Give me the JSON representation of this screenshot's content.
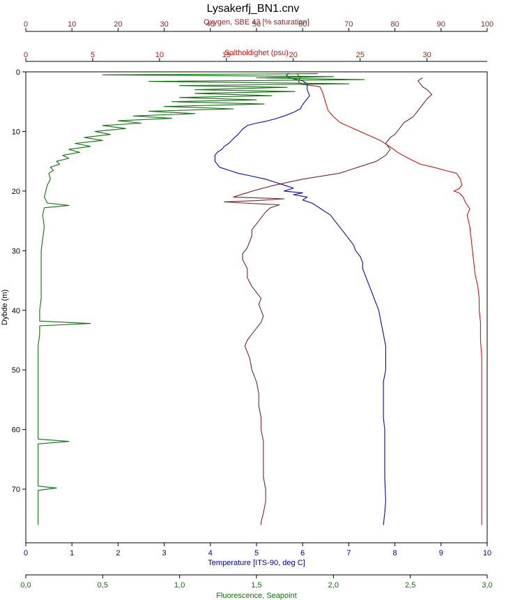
{
  "chart_data": {
    "type": "line",
    "title": "Lysakerfj_BN1.cnv",
    "grid": false,
    "legend": "none",
    "y_axis": {
      "label": "Dybde (m)",
      "range": [
        0,
        79
      ],
      "ticks": [
        0,
        10,
        20,
        30,
        40,
        50,
        60,
        70
      ],
      "inverted": true
    },
    "x_axes": [
      {
        "id": "oxygen",
        "label": "Oxygen, SBE 43 [% saturation]",
        "position": "top-outer",
        "range": [
          0,
          100
        ],
        "ticks": [
          "0",
          "10",
          "20",
          "30",
          "40",
          "50",
          "60",
          "70",
          "80",
          "90",
          "100"
        ],
        "color": "#8b2a2a"
      },
      {
        "id": "salinity",
        "label": "Saltholdighet (psu)",
        "position": "top-inner",
        "range": [
          0,
          34.5
        ],
        "ticks": [
          "0",
          "5",
          "10",
          "15",
          "20",
          "25",
          "30"
        ],
        "color": "#d01010"
      },
      {
        "id": "temperature",
        "label": "Temperature [ITS-90, deg C]",
        "position": "bottom-inner",
        "range": [
          0,
          10
        ],
        "ticks": [
          "0",
          "1",
          "2",
          "3",
          "4",
          "5",
          "6",
          "7",
          "8",
          "9",
          "10"
        ],
        "color": "#0000a0"
      },
      {
        "id": "fluorescence",
        "label": "Fluorescence, Seapoint",
        "position": "bottom-outer",
        "range": [
          0,
          3
        ],
        "ticks": [
          "0,0",
          "0,5",
          "1,0",
          "1,5",
          "2,0",
          "2,5",
          "3,0"
        ],
        "color": "#107010"
      }
    ],
    "series": [
      {
        "axis": "oxygen",
        "color": "#6e2a2a",
        "points": [
          [
            86,
            1
          ],
          [
            85,
            1.5
          ],
          [
            86,
            2.5
          ],
          [
            87,
            3
          ],
          [
            88,
            3.8
          ],
          [
            87,
            4.5
          ],
          [
            86,
            5.5
          ],
          [
            85,
            6.5
          ],
          [
            84,
            7.5
          ],
          [
            82,
            8.5
          ],
          [
            81,
            9.5
          ],
          [
            80,
            10.5
          ],
          [
            79,
            11
          ],
          [
            78,
            12
          ],
          [
            79,
            13
          ],
          [
            78,
            14
          ],
          [
            76,
            15
          ],
          [
            72,
            16
          ],
          [
            68,
            17
          ],
          [
            60,
            18
          ],
          [
            54,
            19
          ],
          [
            50,
            19.8
          ],
          [
            47,
            20.5
          ],
          [
            45,
            21
          ],
          [
            56,
            21.3
          ],
          [
            50,
            21.6
          ],
          [
            43,
            21.8
          ],
          [
            47,
            22
          ],
          [
            55,
            22.3
          ],
          [
            53,
            22.8
          ],
          [
            52,
            23.5
          ],
          [
            51,
            24.5
          ],
          [
            50,
            25.5
          ],
          [
            49,
            26.5
          ],
          [
            49,
            27.5
          ],
          [
            48.5,
            28.5
          ],
          [
            48,
            29.5
          ],
          [
            47,
            30.5
          ],
          [
            47,
            31.5
          ],
          [
            48,
            33
          ],
          [
            48,
            34.5
          ],
          [
            49,
            36
          ],
          [
            50,
            37
          ],
          [
            51,
            38
          ],
          [
            50.5,
            39
          ],
          [
            51,
            40
          ],
          [
            51.5,
            41
          ],
          [
            51,
            42
          ],
          [
            50,
            43
          ],
          [
            49,
            44
          ],
          [
            48,
            45
          ],
          [
            47.5,
            46
          ],
          [
            48,
            47
          ],
          [
            48.5,
            48
          ],
          [
            49,
            50
          ],
          [
            50,
            52
          ],
          [
            50.5,
            54
          ],
          [
            50.5,
            56
          ],
          [
            51,
            58
          ],
          [
            51,
            60
          ],
          [
            51.5,
            62
          ],
          [
            51.5,
            64
          ],
          [
            51.5,
            66
          ],
          [
            51.5,
            68
          ],
          [
            52,
            70
          ],
          [
            52,
            72
          ],
          [
            51.5,
            74
          ],
          [
            51,
            75.5
          ],
          [
            51,
            76
          ]
        ]
      },
      {
        "axis": "salinity",
        "color": "#cc1515",
        "points": [
          [
            20.3,
            0.3
          ],
          [
            20.5,
            1
          ],
          [
            20.4,
            1.6
          ],
          [
            20.6,
            2.1
          ],
          [
            21.5,
            2.3
          ],
          [
            22,
            2.5
          ],
          [
            22.2,
            3.5
          ],
          [
            22.4,
            5
          ],
          [
            22.6,
            6.5
          ],
          [
            23,
            7.5
          ],
          [
            23.5,
            8.5
          ],
          [
            24.5,
            9.5
          ],
          [
            25.5,
            10.5
          ],
          [
            26.5,
            11.5
          ],
          [
            27.2,
            12.5
          ],
          [
            27.8,
            13.5
          ],
          [
            28.6,
            14.5
          ],
          [
            29.5,
            15.5
          ],
          [
            30.5,
            16
          ],
          [
            31.3,
            16.5
          ],
          [
            32.2,
            17
          ],
          [
            32.5,
            18
          ],
          [
            32.6,
            19
          ],
          [
            32.4,
            19.6
          ],
          [
            32,
            20
          ],
          [
            32.4,
            20.3
          ],
          [
            32.7,
            21
          ],
          [
            32.9,
            22
          ],
          [
            33.2,
            23
          ],
          [
            33,
            24
          ],
          [
            33.1,
            25
          ],
          [
            33.2,
            26
          ],
          [
            33.3,
            28
          ],
          [
            33.4,
            30
          ],
          [
            33.5,
            32
          ],
          [
            33.6,
            34
          ],
          [
            33.8,
            36
          ],
          [
            33.9,
            38
          ],
          [
            33.9,
            40
          ],
          [
            34,
            42
          ],
          [
            34,
            45
          ],
          [
            34.1,
            48
          ],
          [
            34.1,
            52
          ],
          [
            34.1,
            56
          ],
          [
            34.1,
            60
          ],
          [
            34.1,
            64
          ],
          [
            34.1,
            68
          ],
          [
            34.1,
            72
          ],
          [
            34.1,
            74
          ],
          [
            34.1,
            76
          ]
        ]
      },
      {
        "axis": "temperature",
        "color": "#0a0aa0",
        "points": [
          [
            5.7,
            0.2
          ],
          [
            5.65,
            0.6
          ],
          [
            5.7,
            1
          ],
          [
            6.0,
            1.5
          ],
          [
            6.1,
            2
          ],
          [
            6.1,
            3
          ],
          [
            6.15,
            4
          ],
          [
            6.05,
            5
          ],
          [
            6.0,
            5.5
          ],
          [
            5.95,
            6.2
          ],
          [
            5.8,
            6.8
          ],
          [
            5.6,
            7.4
          ],
          [
            5.4,
            7.9
          ],
          [
            5.2,
            8.3
          ],
          [
            5.0,
            8.6
          ],
          [
            4.8,
            9
          ],
          [
            4.7,
            9.6
          ],
          [
            4.6,
            10.5
          ],
          [
            4.5,
            11.2
          ],
          [
            4.4,
            12
          ],
          [
            4.3,
            12.5
          ],
          [
            4.25,
            13
          ],
          [
            4.15,
            13.5
          ],
          [
            4.1,
            14
          ],
          [
            4.1,
            15
          ],
          [
            4.2,
            16
          ],
          [
            4.4,
            16.5
          ],
          [
            4.6,
            17
          ],
          [
            4.9,
            17.5
          ],
          [
            5.2,
            18
          ],
          [
            5.4,
            18.5
          ],
          [
            5.6,
            19
          ],
          [
            5.8,
            19.5
          ],
          [
            5.6,
            20
          ],
          [
            6.0,
            20.3
          ],
          [
            5.8,
            20.6
          ],
          [
            6.1,
            21
          ],
          [
            6.0,
            21.5
          ],
          [
            6.2,
            22
          ],
          [
            6.3,
            22.5
          ],
          [
            6.4,
            23
          ],
          [
            6.5,
            23.5
          ],
          [
            6.6,
            24
          ],
          [
            6.7,
            25
          ],
          [
            6.8,
            26
          ],
          [
            6.9,
            27
          ],
          [
            7.0,
            28
          ],
          [
            7.1,
            29
          ],
          [
            7.15,
            30
          ],
          [
            7.25,
            31
          ],
          [
            7.3,
            32
          ],
          [
            7.3,
            33
          ],
          [
            7.35,
            34
          ],
          [
            7.4,
            35
          ],
          [
            7.45,
            36
          ],
          [
            7.5,
            37
          ],
          [
            7.55,
            38
          ],
          [
            7.6,
            39
          ],
          [
            7.65,
            40
          ],
          [
            7.7,
            42
          ],
          [
            7.75,
            44
          ],
          [
            7.8,
            46
          ],
          [
            7.8,
            48
          ],
          [
            7.8,
            50
          ],
          [
            7.75,
            52
          ],
          [
            7.75,
            54
          ],
          [
            7.75,
            56
          ],
          [
            7.75,
            58
          ],
          [
            7.78,
            60
          ],
          [
            7.78,
            64
          ],
          [
            7.78,
            68
          ],
          [
            7.8,
            72
          ],
          [
            7.78,
            74
          ],
          [
            7.75,
            76
          ]
        ]
      },
      {
        "axis": "fluorescence",
        "color": "#107010",
        "points": [
          [
            1.9,
            0.3
          ],
          [
            0.5,
            0.5
          ],
          [
            2.0,
            0.8
          ],
          [
            1.5,
            1
          ],
          [
            2.2,
            1.3
          ],
          [
            0.8,
            1.6
          ],
          [
            2.1,
            2
          ],
          [
            1.0,
            2.3
          ],
          [
            1.7,
            2.6
          ],
          [
            1.1,
            3
          ],
          [
            1.75,
            3.3
          ],
          [
            1.1,
            3.6
          ],
          [
            1.6,
            4
          ],
          [
            1.0,
            4.3
          ],
          [
            1.5,
            4.7
          ],
          [
            0.95,
            5
          ],
          [
            1.55,
            5.4
          ],
          [
            0.9,
            5.8
          ],
          [
            1.35,
            6.2
          ],
          [
            0.8,
            6.6
          ],
          [
            1.1,
            7
          ],
          [
            0.7,
            7.4
          ],
          [
            0.95,
            7.8
          ],
          [
            0.6,
            8.2
          ],
          [
            0.75,
            8.6
          ],
          [
            0.5,
            9
          ],
          [
            0.65,
            9.5
          ],
          [
            0.45,
            10
          ],
          [
            0.55,
            10.5
          ],
          [
            0.38,
            11
          ],
          [
            0.5,
            11.5
          ],
          [
            0.32,
            12
          ],
          [
            0.42,
            12.5
          ],
          [
            0.28,
            13
          ],
          [
            0.35,
            13.5
          ],
          [
            0.24,
            14
          ],
          [
            0.28,
            14.5
          ],
          [
            0.2,
            15
          ],
          [
            0.22,
            15.5
          ],
          [
            0.16,
            16
          ],
          [
            0.18,
            16.5
          ],
          [
            0.15,
            17
          ],
          [
            0.16,
            18
          ],
          [
            0.14,
            19
          ],
          [
            0.13,
            20
          ],
          [
            0.12,
            21
          ],
          [
            0.14,
            22
          ],
          [
            0.28,
            22.4
          ],
          [
            0.12,
            22.8
          ],
          [
            0.11,
            24
          ],
          [
            0.12,
            26
          ],
          [
            0.11,
            28
          ],
          [
            0.1,
            30
          ],
          [
            0.1,
            32
          ],
          [
            0.1,
            34
          ],
          [
            0.1,
            36
          ],
          [
            0.1,
            38
          ],
          [
            0.09,
            40
          ],
          [
            0.09,
            41.8
          ],
          [
            0.42,
            42.2
          ],
          [
            0.09,
            42.6
          ],
          [
            0.09,
            44
          ],
          [
            0.08,
            46
          ],
          [
            0.08,
            48
          ],
          [
            0.08,
            50
          ],
          [
            0.08,
            52
          ],
          [
            0.08,
            54
          ],
          [
            0.08,
            56
          ],
          [
            0.08,
            58
          ],
          [
            0.08,
            60
          ],
          [
            0.08,
            61.6
          ],
          [
            0.28,
            62
          ],
          [
            0.08,
            62.4
          ],
          [
            0.08,
            64
          ],
          [
            0.08,
            66
          ],
          [
            0.08,
            68
          ],
          [
            0.08,
            69.5
          ],
          [
            0.2,
            69.8
          ],
          [
            0.08,
            70.2
          ],
          [
            0.08,
            72
          ],
          [
            0.08,
            74
          ],
          [
            0.08,
            75.5
          ],
          [
            0.08,
            76
          ]
        ]
      }
    ]
  }
}
